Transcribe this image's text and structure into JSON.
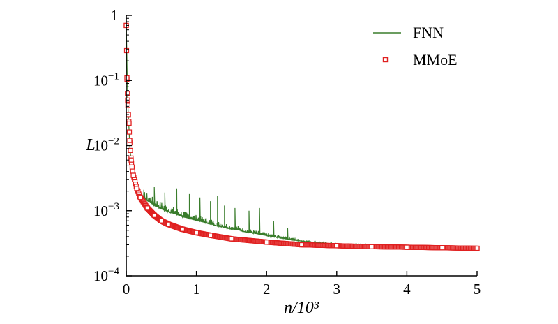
{
  "chart_data": {
    "type": "line",
    "xlabel": "n/10³",
    "ylabel": "L",
    "x_scale": "linear",
    "y_scale": "log",
    "xlim": [
      0,
      5
    ],
    "ylim": [
      0.0001,
      1
    ],
    "x_ticks": [
      0,
      1,
      2,
      3,
      4,
      5
    ],
    "x_tick_labels": [
      "0",
      "1",
      "2",
      "3",
      "4",
      "5"
    ],
    "y_ticks": [
      0.0001,
      0.001,
      0.01,
      0.1,
      1
    ],
    "y_tick_labels": [
      {
        "base": "10",
        "exp": "−4"
      },
      {
        "base": "10",
        "exp": "−3"
      },
      {
        "base": "10",
        "exp": "−2"
      },
      {
        "base": "10",
        "exp": "−1"
      },
      {
        "base": "1",
        "exp": ""
      }
    ],
    "grid": false,
    "legend_position": "top-right",
    "series": [
      {
        "name": "FNN",
        "style": "line",
        "color": "#3a7d2c",
        "x": [
          0,
          0.02,
          0.05,
          0.08,
          0.1,
          0.15,
          0.2,
          0.3,
          0.4,
          0.5,
          0.6,
          0.7,
          0.8,
          0.9,
          1.0,
          1.1,
          1.2,
          1.3,
          1.4,
          1.5,
          1.6,
          1.7,
          1.8,
          1.9,
          2.0,
          2.2,
          2.5,
          3.0,
          3.5,
          4.0,
          4.5,
          5.0
        ],
        "y": [
          0.7,
          0.05,
          0.01,
          0.004,
          0.003,
          0.002,
          0.0016,
          0.0014,
          0.0012,
          0.00105,
          0.00095,
          0.00088,
          0.0008,
          0.00075,
          0.0007,
          0.00066,
          0.00062,
          0.00058,
          0.00055,
          0.00052,
          0.0005,
          0.00047,
          0.00045,
          0.00043,
          0.00041,
          0.00038,
          0.00034,
          0.0003,
          0.00029,
          0.00028,
          0.00027,
          0.00027
        ],
        "spikes": [
          {
            "x": 0.25,
            "y": 0.0021
          },
          {
            "x": 0.4,
            "y": 0.0023
          },
          {
            "x": 0.55,
            "y": 0.0019
          },
          {
            "x": 0.72,
            "y": 0.0022
          },
          {
            "x": 0.9,
            "y": 0.0018
          },
          {
            "x": 1.05,
            "y": 0.0016
          },
          {
            "x": 1.2,
            "y": 0.0014
          },
          {
            "x": 1.3,
            "y": 0.0017
          },
          {
            "x": 1.4,
            "y": 0.0012
          },
          {
            "x": 1.55,
            "y": 0.0011
          },
          {
            "x": 1.75,
            "y": 0.001
          },
          {
            "x": 1.9,
            "y": 0.0011
          },
          {
            "x": 2.1,
            "y": 0.0007
          },
          {
            "x": 2.3,
            "y": 0.00055
          }
        ]
      },
      {
        "name": "MMoE",
        "style": "markers",
        "marker": "square",
        "color": "#e02020",
        "x": [
          0,
          0.01,
          0.02,
          0.03,
          0.04,
          0.05,
          0.07,
          0.1,
          0.15,
          0.2,
          0.3,
          0.4,
          0.5,
          0.6,
          0.8,
          1.0,
          1.2,
          1.5,
          2.0,
          2.5,
          3.0,
          3.5,
          4.0,
          4.5,
          5.0
        ],
        "y": [
          0.7,
          0.11,
          0.05,
          0.03,
          0.022,
          0.012,
          0.006,
          0.0035,
          0.0022,
          0.0016,
          0.0011,
          0.00085,
          0.0007,
          0.00062,
          0.00052,
          0.00046,
          0.00042,
          0.00037,
          0.00033,
          0.0003,
          0.00029,
          0.00028,
          0.000275,
          0.00027,
          0.000265
        ]
      }
    ]
  }
}
